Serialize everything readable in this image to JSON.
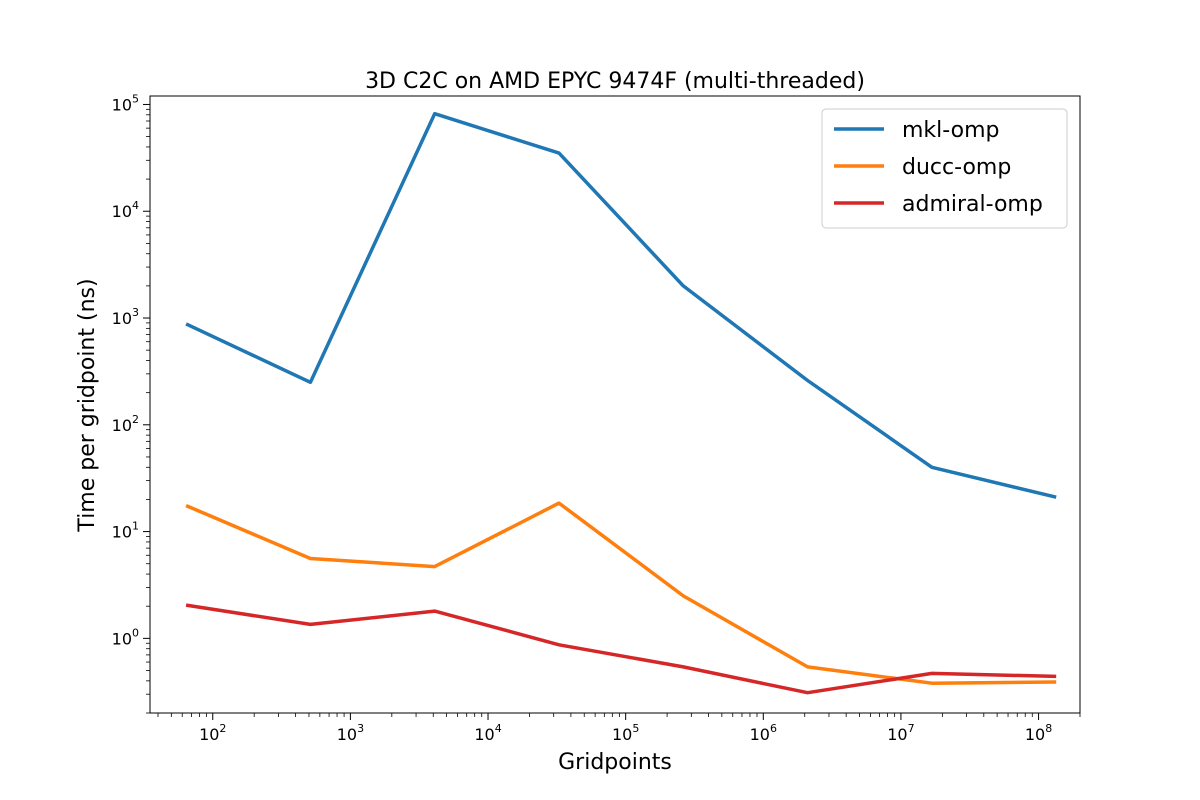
{
  "chart_data": {
    "type": "line",
    "title": "3D C2C on AMD EPYC 9474F (multi-threaded)",
    "xlabel": "Gridpoints",
    "ylabel": "Time per gridpoint (ns)",
    "xscale": "log",
    "yscale": "log",
    "xlim": [
      35,
      200000000
    ],
    "ylim": [
      0.2,
      120000
    ],
    "x": [
      64,
      512,
      4096,
      32768,
      262144,
      2097152,
      16777216,
      134217728
    ],
    "xticks": [
      {
        "value": 100,
        "base": "10",
        "exp": "2"
      },
      {
        "value": 1000,
        "base": "10",
        "exp": "3"
      },
      {
        "value": 10000,
        "base": "10",
        "exp": "4"
      },
      {
        "value": 100000,
        "base": "10",
        "exp": "5"
      },
      {
        "value": 1000000,
        "base": "10",
        "exp": "6"
      },
      {
        "value": 10000000,
        "base": "10",
        "exp": "7"
      },
      {
        "value": 100000000,
        "base": "10",
        "exp": "8"
      }
    ],
    "yticks": [
      {
        "value": 1,
        "base": "10",
        "exp": "0"
      },
      {
        "value": 10,
        "base": "10",
        "exp": "1"
      },
      {
        "value": 100,
        "base": "10",
        "exp": "2"
      },
      {
        "value": 1000,
        "base": "10",
        "exp": "3"
      },
      {
        "value": 10000,
        "base": "10",
        "exp": "4"
      },
      {
        "value": 100000,
        "base": "10",
        "exp": "5"
      }
    ],
    "series": [
      {
        "name": "mkl-omp",
        "color": "#1f77b4",
        "values": [
          880,
          250,
          82000,
          35000,
          2000,
          260,
          40,
          21
        ]
      },
      {
        "name": "ducc-omp",
        "color": "#ff7f0e",
        "values": [
          17.5,
          5.6,
          4.7,
          18.5,
          2.5,
          0.54,
          0.38,
          0.39
        ]
      },
      {
        "name": "admiral-omp",
        "color": "#d62728",
        "values": [
          2.05,
          1.35,
          1.8,
          0.87,
          0.54,
          0.31,
          0.47,
          0.44
        ]
      }
    ],
    "legend": "top-right",
    "grid": false
  }
}
